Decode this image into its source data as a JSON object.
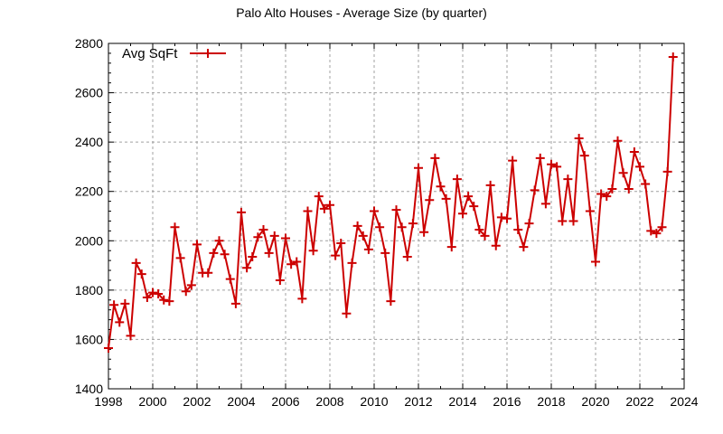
{
  "chart_data": {
    "type": "line",
    "title": "Palo Alto Houses - Average Size (by quarter)",
    "xlabel": "",
    "ylabel": "",
    "xlim": [
      1998,
      2024
    ],
    "ylim": [
      1400,
      2800
    ],
    "xticks": [
      1998,
      2000,
      2002,
      2004,
      2006,
      2008,
      2010,
      2012,
      2014,
      2016,
      2018,
      2020,
      2022,
      2024
    ],
    "yticks": [
      1400,
      1600,
      1800,
      2000,
      2200,
      2400,
      2600,
      2800
    ],
    "grid": true,
    "legend_position": "top-left",
    "colors": {
      "series": "#cc0000",
      "grid": "#a0a0a0"
    },
    "series": [
      {
        "name": "Avg SqFt",
        "marker": "plus",
        "x": [
          1998.0,
          1998.25,
          1998.5,
          1998.75,
          1999.0,
          1999.25,
          1999.5,
          1999.75,
          2000.0,
          2000.25,
          2000.5,
          2000.75,
          2001.0,
          2001.25,
          2001.5,
          2001.75,
          2002.0,
          2002.25,
          2002.5,
          2002.75,
          2003.0,
          2003.25,
          2003.5,
          2003.75,
          2004.0,
          2004.25,
          2004.5,
          2004.75,
          2005.0,
          2005.25,
          2005.5,
          2005.75,
          2006.0,
          2006.25,
          2006.5,
          2006.75,
          2007.0,
          2007.25,
          2007.5,
          2007.75,
          2008.0,
          2008.25,
          2008.5,
          2008.75,
          2009.0,
          2009.25,
          2009.5,
          2009.75,
          2010.0,
          2010.25,
          2010.5,
          2010.75,
          2011.0,
          2011.25,
          2011.5,
          2011.75,
          2012.0,
          2012.25,
          2012.5,
          2012.75,
          2013.0,
          2013.25,
          2013.5,
          2013.75,
          2014.0,
          2014.25,
          2014.5,
          2014.75,
          2015.0,
          2015.25,
          2015.5,
          2015.75,
          2016.0,
          2016.25,
          2016.5,
          2016.75,
          2017.0,
          2017.25,
          2017.5,
          2017.75,
          2018.0,
          2018.25,
          2018.5,
          2018.75,
          2019.0,
          2019.25,
          2019.5,
          2019.75,
          2020.0,
          2020.25,
          2020.5,
          2020.75,
          2021.0,
          2021.25,
          2021.5,
          2021.75,
          2022.0,
          2022.25,
          2022.5,
          2022.75,
          2023.0,
          2023.25,
          2023.5
        ],
        "values": [
          1565,
          1740,
          1670,
          1745,
          1615,
          1910,
          1865,
          1770,
          1790,
          1785,
          1760,
          1755,
          2055,
          1930,
          1795,
          1820,
          1985,
          1870,
          1870,
          1950,
          2000,
          1945,
          1845,
          1745,
          2115,
          1890,
          1935,
          2015,
          2045,
          1950,
          2020,
          1840,
          2010,
          1905,
          1915,
          1765,
          2120,
          1960,
          2180,
          2130,
          2145,
          1940,
          1990,
          1705,
          1910,
          2060,
          2020,
          1965,
          2120,
          2055,
          1950,
          1755,
          2125,
          2055,
          1935,
          2070,
          2295,
          2035,
          2165,
          2335,
          2220,
          2170,
          1975,
          2250,
          2110,
          2180,
          2140,
          2045,
          2020,
          2225,
          1980,
          2095,
          2090,
          2325,
          2045,
          1975,
          2070,
          2205,
          2335,
          2150,
          2310,
          2300,
          2080,
          2250,
          2080,
          2415,
          2345,
          2120,
          1915,
          2190,
          2180,
          2210,
          2405,
          2275,
          2210,
          2360,
          2300,
          2230,
          2040,
          2030,
          2055,
          2280,
          2745
        ]
      }
    ]
  }
}
